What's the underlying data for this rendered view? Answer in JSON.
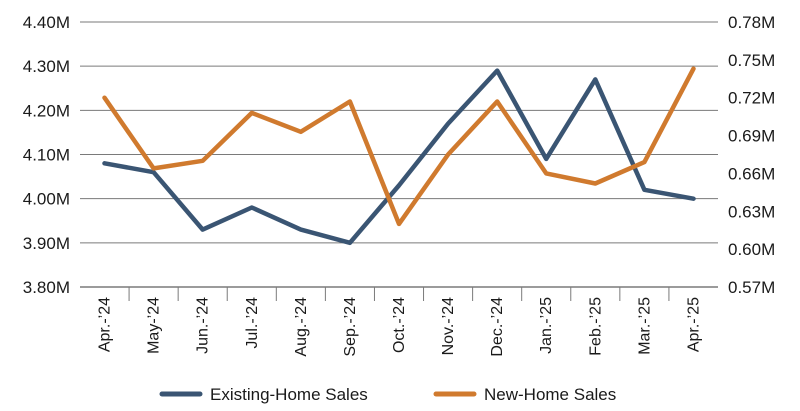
{
  "chart_data": {
    "type": "line",
    "title": "",
    "xlabel": "",
    "ylabel": "",
    "categories": [
      "Apr.-’24",
      "May-’24",
      "Jun.-’24",
      "Jul.-’24",
      "Aug.-’24",
      "Sep.-’24",
      "Oct.-’24",
      "Nov.-’24",
      "Dec.-’24",
      "Jan.-’25",
      "Feb.-’25",
      "Mar.-’25",
      "Apr.-’25"
    ],
    "y_left": {
      "ylim": [
        3.8,
        4.4
      ],
      "ticks": [
        3.8,
        3.9,
        4.0,
        4.1,
        4.2,
        4.3,
        4.4
      ],
      "tick_labels": [
        "3.80M",
        "3.90M",
        "4.00M",
        "4.10M",
        "4.20M",
        "4.30M",
        "4.40M"
      ]
    },
    "y_right": {
      "ylim": [
        0.57,
        0.78
      ],
      "ticks": [
        0.57,
        0.6,
        0.63,
        0.66,
        0.69,
        0.72,
        0.75,
        0.78
      ],
      "tick_labels": [
        "0.57M",
        "0.60M",
        "0.63M",
        "0.66M",
        "0.69M",
        "0.72M",
        "0.75M",
        "0.78M"
      ]
    },
    "grid": true,
    "legend_position": "bottom",
    "series": [
      {
        "name": "Existing-Home Sales",
        "axis": "left",
        "color": "#3a5573",
        "values": [
          4.08,
          4.06,
          3.93,
          3.98,
          3.93,
          3.9,
          4.03,
          4.17,
          4.29,
          4.09,
          4.27,
          4.02,
          4.0
        ]
      },
      {
        "name": "New-Home Sales",
        "axis": "right",
        "color": "#d07a2e",
        "values": [
          0.72,
          0.664,
          0.67,
          0.708,
          0.693,
          0.717,
          0.62,
          0.675,
          0.717,
          0.66,
          0.652,
          0.669,
          0.743
        ]
      }
    ]
  }
}
